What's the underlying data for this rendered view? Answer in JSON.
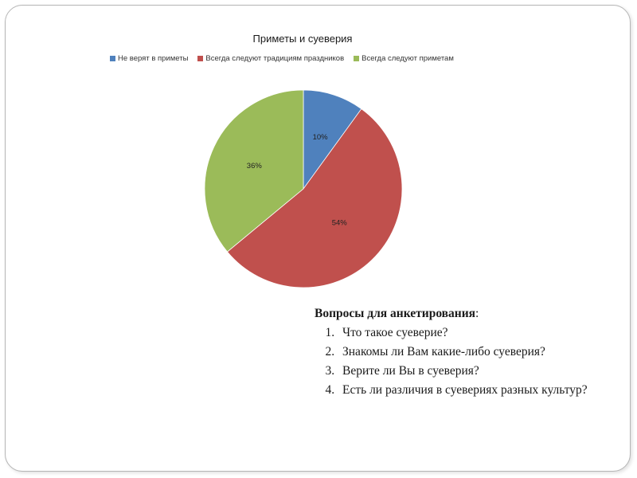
{
  "chart_data": {
    "type": "pie",
    "title": "Приметы и суеверия",
    "categories": [
      "Не верят в приметы",
      "Всегда следуют традициям праздников",
      "Всегда следуют приметам"
    ],
    "values": [
      10,
      54,
      36
    ],
    "labels": [
      "10%",
      "54%",
      "36%"
    ],
    "colors": [
      "#4f81bd",
      "#c0504d",
      "#9bbb59"
    ],
    "legend_position": "top"
  },
  "questions": {
    "heading": "Вопросы для анкетирования",
    "heading_suffix": ":",
    "items": [
      "Что такое суеверие?",
      "Знакомы ли Вам какие-либо суеверия?",
      "Верите ли Вы в суеверия?",
      "Есть ли различия в суевериях разных культур?"
    ]
  }
}
